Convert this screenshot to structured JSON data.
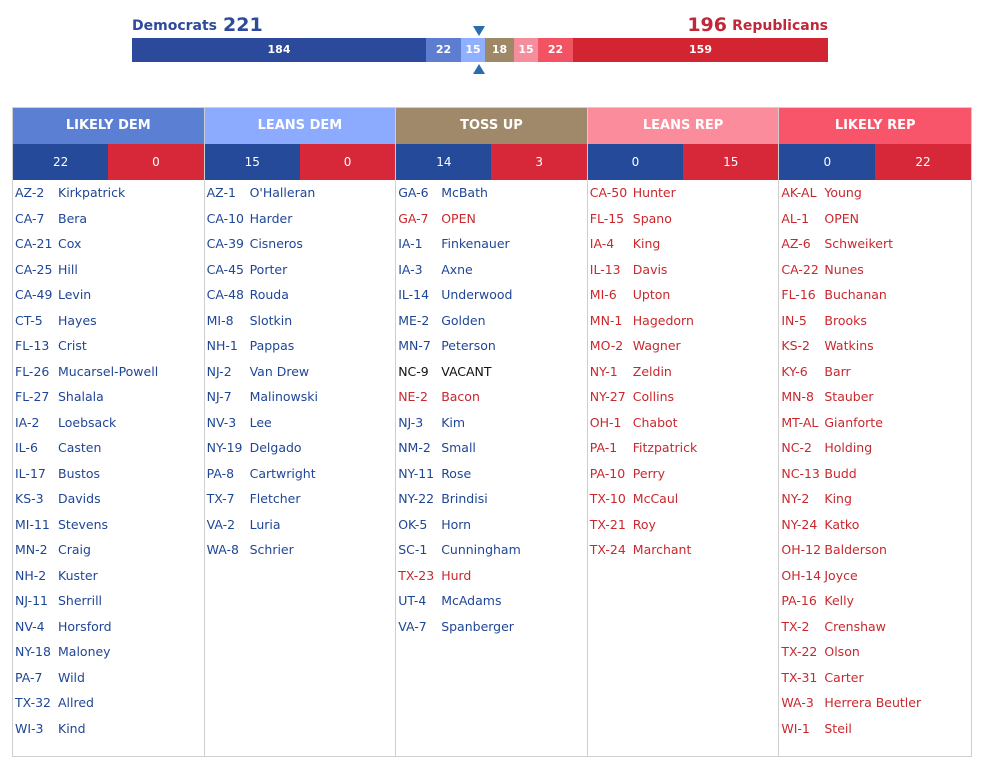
{
  "summary": {
    "dem_label": "Democrats",
    "dem_total": "221",
    "rep_total": "196",
    "rep_label": "Republicans",
    "segments": [
      {
        "label": "184",
        "value": 184,
        "color": "#2c4a9c"
      },
      {
        "label": "22",
        "value": 22,
        "color": "#5d7dd0"
      },
      {
        "label": "15",
        "value": 15,
        "color": "#8fb0ff"
      },
      {
        "label": "18",
        "value": 18,
        "color": "#9e8866"
      },
      {
        "label": "15",
        "value": 15,
        "color": "#f48d9c"
      },
      {
        "label": "22",
        "value": 22,
        "color": "#f25363"
      },
      {
        "label": "159",
        "value": 159,
        "color": "#d32431"
      }
    ]
  },
  "columns": [
    {
      "name": "LIKELY DEM",
      "color": "#5b7fd2",
      "dem_count": "22",
      "rep_count": "0",
      "races": [
        {
          "d": "AZ-2",
          "c": "Kirkpatrick",
          "p": "dem"
        },
        {
          "d": "CA-7",
          "c": "Bera",
          "p": "dem"
        },
        {
          "d": "CA-21",
          "c": "Cox",
          "p": "dem"
        },
        {
          "d": "CA-25",
          "c": "Hill",
          "p": "dem"
        },
        {
          "d": "CA-49",
          "c": "Levin",
          "p": "dem"
        },
        {
          "d": "CT-5",
          "c": "Hayes",
          "p": "dem"
        },
        {
          "d": "FL-13",
          "c": "Crist",
          "p": "dem"
        },
        {
          "d": "FL-26",
          "c": "Mucarsel-Powell",
          "p": "dem"
        },
        {
          "d": "FL-27",
          "c": "Shalala",
          "p": "dem"
        },
        {
          "d": "IA-2",
          "c": "Loebsack",
          "p": "dem"
        },
        {
          "d": "IL-6",
          "c": "Casten",
          "p": "dem"
        },
        {
          "d": "IL-17",
          "c": "Bustos",
          "p": "dem"
        },
        {
          "d": "KS-3",
          "c": "Davids",
          "p": "dem"
        },
        {
          "d": "MI-11",
          "c": "Stevens",
          "p": "dem"
        },
        {
          "d": "MN-2",
          "c": "Craig",
          "p": "dem"
        },
        {
          "d": "NH-2",
          "c": "Kuster",
          "p": "dem"
        },
        {
          "d": "NJ-11",
          "c": "Sherrill",
          "p": "dem"
        },
        {
          "d": "NV-4",
          "c": "Horsford",
          "p": "dem"
        },
        {
          "d": "NY-18",
          "c": "Maloney",
          "p": "dem"
        },
        {
          "d": "PA-7",
          "c": "Wild",
          "p": "dem"
        },
        {
          "d": "TX-32",
          "c": "Allred",
          "p": "dem"
        },
        {
          "d": "WI-3",
          "c": "Kind",
          "p": "dem"
        }
      ]
    },
    {
      "name": "LEANS DEM",
      "color": "#8cabff",
      "dem_count": "15",
      "rep_count": "0",
      "races": [
        {
          "d": "AZ-1",
          "c": "O'Halleran",
          "p": "dem"
        },
        {
          "d": "CA-10",
          "c": "Harder",
          "p": "dem"
        },
        {
          "d": "CA-39",
          "c": "Cisneros",
          "p": "dem"
        },
        {
          "d": "CA-45",
          "c": "Porter",
          "p": "dem"
        },
        {
          "d": "CA-48",
          "c": "Rouda",
          "p": "dem"
        },
        {
          "d": "MI-8",
          "c": "Slotkin",
          "p": "dem"
        },
        {
          "d": "NH-1",
          "c": "Pappas",
          "p": "dem"
        },
        {
          "d": "NJ-2",
          "c": "Van Drew",
          "p": "dem"
        },
        {
          "d": "NJ-7",
          "c": "Malinowski",
          "p": "dem"
        },
        {
          "d": "NV-3",
          "c": "Lee",
          "p": "dem"
        },
        {
          "d": "NY-19",
          "c": "Delgado",
          "p": "dem"
        },
        {
          "d": "PA-8",
          "c": "Cartwright",
          "p": "dem"
        },
        {
          "d": "TX-7",
          "c": "Fletcher",
          "p": "dem"
        },
        {
          "d": "VA-2",
          "c": "Luria",
          "p": "dem"
        },
        {
          "d": "WA-8",
          "c": "Schrier",
          "p": "dem"
        }
      ]
    },
    {
      "name": "TOSS UP",
      "color": "#a0896a",
      "dem_count": "14",
      "rep_count": "3",
      "races": [
        {
          "d": "GA-6",
          "c": "McBath",
          "p": "dem"
        },
        {
          "d": "GA-7",
          "c": "OPEN",
          "p": "rep"
        },
        {
          "d": "IA-1",
          "c": "Finkenauer",
          "p": "dem"
        },
        {
          "d": "IA-3",
          "c": "Axne",
          "p": "dem"
        },
        {
          "d": "IL-14",
          "c": "Underwood",
          "p": "dem"
        },
        {
          "d": "ME-2",
          "c": "Golden",
          "p": "dem"
        },
        {
          "d": "MN-7",
          "c": "Peterson",
          "p": "dem"
        },
        {
          "d": "NC-9",
          "c": "VACANT",
          "p": "vac"
        },
        {
          "d": "NE-2",
          "c": "Bacon",
          "p": "rep"
        },
        {
          "d": "NJ-3",
          "c": "Kim",
          "p": "dem"
        },
        {
          "d": "NM-2",
          "c": "Small",
          "p": "dem"
        },
        {
          "d": "NY-11",
          "c": "Rose",
          "p": "dem"
        },
        {
          "d": "NY-22",
          "c": "Brindisi",
          "p": "dem"
        },
        {
          "d": "OK-5",
          "c": "Horn",
          "p": "dem"
        },
        {
          "d": "SC-1",
          "c": "Cunningham",
          "p": "dem"
        },
        {
          "d": "TX-23",
          "c": "Hurd",
          "p": "rep"
        },
        {
          "d": "UT-4",
          "c": "McAdams",
          "p": "dem"
        },
        {
          "d": "VA-7",
          "c": "Spanberger",
          "p": "dem"
        }
      ]
    },
    {
      "name": "LEANS REP",
      "color": "#fa8c9b",
      "dem_count": "0",
      "rep_count": "15",
      "races": [
        {
          "d": "CA-50",
          "c": "Hunter",
          "p": "rep"
        },
        {
          "d": "FL-15",
          "c": "Spano",
          "p": "rep"
        },
        {
          "d": "IA-4",
          "c": "King",
          "p": "rep"
        },
        {
          "d": "IL-13",
          "c": "Davis",
          "p": "rep"
        },
        {
          "d": "MI-6",
          "c": "Upton",
          "p": "rep"
        },
        {
          "d": "MN-1",
          "c": "Hagedorn",
          "p": "rep"
        },
        {
          "d": "MO-2",
          "c": "Wagner",
          "p": "rep"
        },
        {
          "d": "NY-1",
          "c": "Zeldin",
          "p": "rep"
        },
        {
          "d": "NY-27",
          "c": "Collins",
          "p": "rep"
        },
        {
          "d": "OH-1",
          "c": "Chabot",
          "p": "rep"
        },
        {
          "d": "PA-1",
          "c": "Fitzpatrick",
          "p": "rep"
        },
        {
          "d": "PA-10",
          "c": "Perry",
          "p": "rep"
        },
        {
          "d": "TX-10",
          "c": "McCaul",
          "p": "rep"
        },
        {
          "d": "TX-21",
          "c": "Roy",
          "p": "rep"
        },
        {
          "d": "TX-24",
          "c": "Marchant",
          "p": "rep"
        }
      ]
    },
    {
      "name": "LIKELY REP",
      "color": "#f8546a",
      "dem_count": "0",
      "rep_count": "22",
      "races": [
        {
          "d": "AK-AL",
          "c": "Young",
          "p": "rep"
        },
        {
          "d": "AL-1",
          "c": "OPEN",
          "p": "rep"
        },
        {
          "d": "AZ-6",
          "c": "Schweikert",
          "p": "rep"
        },
        {
          "d": "CA-22",
          "c": "Nunes",
          "p": "rep"
        },
        {
          "d": "FL-16",
          "c": "Buchanan",
          "p": "rep"
        },
        {
          "d": "IN-5",
          "c": "Brooks",
          "p": "rep"
        },
        {
          "d": "KS-2",
          "c": "Watkins",
          "p": "rep"
        },
        {
          "d": "KY-6",
          "c": "Barr",
          "p": "rep"
        },
        {
          "d": "MN-8",
          "c": "Stauber",
          "p": "rep"
        },
        {
          "d": "MT-AL",
          "c": "Gianforte",
          "p": "rep"
        },
        {
          "d": "NC-2",
          "c": "Holding",
          "p": "rep"
        },
        {
          "d": "NC-13",
          "c": "Budd",
          "p": "rep"
        },
        {
          "d": "NY-2",
          "c": "King",
          "p": "rep"
        },
        {
          "d": "NY-24",
          "c": "Katko",
          "p": "rep"
        },
        {
          "d": "OH-12",
          "c": "Balderson",
          "p": "rep"
        },
        {
          "d": "OH-14",
          "c": "Joyce",
          "p": "rep"
        },
        {
          "d": "PA-16",
          "c": "Kelly",
          "p": "rep"
        },
        {
          "d": "TX-2",
          "c": "Crenshaw",
          "p": "rep"
        },
        {
          "d": "TX-22",
          "c": "Olson",
          "p": "rep"
        },
        {
          "d": "TX-31",
          "c": "Carter",
          "p": "rep"
        },
        {
          "d": "WA-3",
          "c": "Herrera Beutler",
          "p": "rep"
        },
        {
          "d": "WI-1",
          "c": "Steil",
          "p": "rep"
        }
      ]
    }
  ]
}
